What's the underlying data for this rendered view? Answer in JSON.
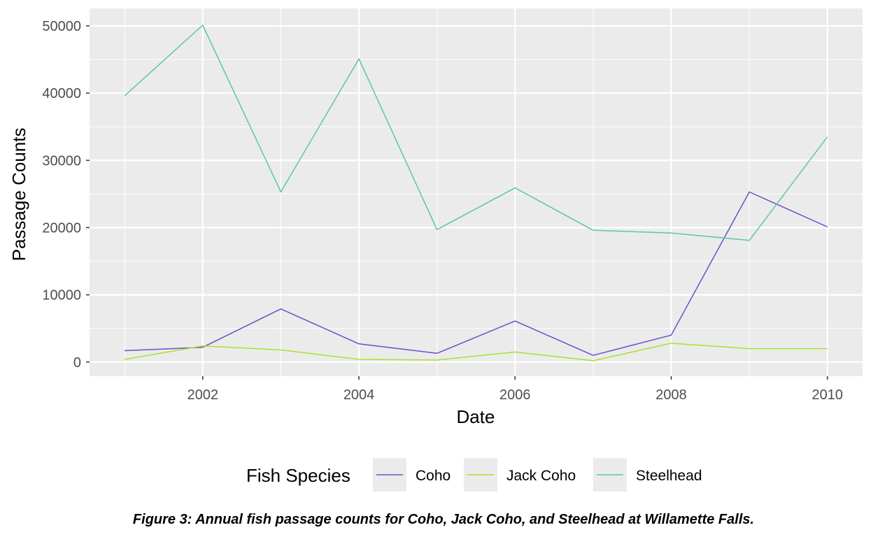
{
  "chart_data": {
    "type": "line",
    "x": [
      2001,
      2002,
      2003,
      2004,
      2005,
      2006,
      2007,
      2008,
      2009,
      2010
    ],
    "series": [
      {
        "name": "Coho",
        "color": "#6a51c9",
        "values": [
          1700,
          2200,
          7900,
          2700,
          1300,
          6100,
          1000,
          4000,
          25300,
          20100
        ]
      },
      {
        "name": "Jack Coho",
        "color": "#a6e22e",
        "values": [
          400,
          2400,
          1800,
          400,
          300,
          1500,
          200,
          2800,
          2000,
          2000
        ]
      },
      {
        "name": "Steelhead",
        "color": "#5cc8a0",
        "values": [
          39600,
          50100,
          25300,
          45100,
          19700,
          25900,
          19600,
          19200,
          18100,
          33500
        ]
      }
    ],
    "xlabel": "Date",
    "ylabel": "Passage Counts",
    "xticks": [
      2002,
      2004,
      2006,
      2008,
      2010
    ],
    "yticks": [
      0,
      10000,
      20000,
      30000,
      40000,
      50000
    ],
    "xlim": [
      2000.55,
      2010.45
    ],
    "ylim": [
      -2100,
      52600
    ],
    "grid": true,
    "legend": {
      "title": "Fish Species",
      "position": "bottom"
    },
    "caption": "Figure 3: Annual fish passage counts for Coho, Jack Coho, and Steelhead at Willamette Falls."
  }
}
